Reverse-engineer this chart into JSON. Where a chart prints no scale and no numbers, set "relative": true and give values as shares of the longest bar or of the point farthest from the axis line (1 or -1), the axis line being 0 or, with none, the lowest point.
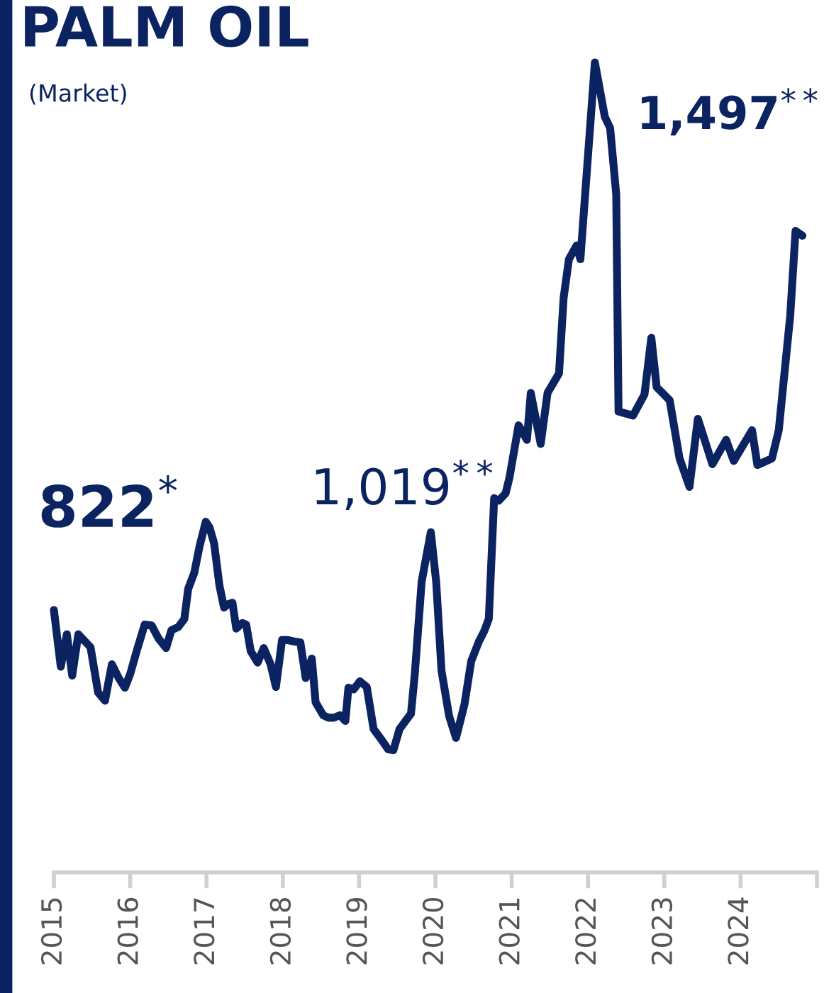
{
  "chart_data": {
    "type": "line",
    "title": "PALM OIL",
    "subtitle": "(Market)",
    "relative": true,
    "color": "#0b2461",
    "grid": false,
    "legend": false,
    "marker": "none",
    "line_style": "solid",
    "tick_labels": "x",
    "xlim": [
      2015,
      2025
    ],
    "xticks": [
      2015,
      2016,
      2017,
      2018,
      2019,
      2020,
      2021,
      2022,
      2023,
      2024,
      {
        "value": 2025,
        "label": null
      }
    ],
    "x": [
      2015.0,
      2015.09,
      2015.17,
      2015.24,
      2015.32,
      2015.41,
      2015.48,
      2015.58,
      2015.67,
      2015.76,
      2015.85,
      2015.93,
      2016.0,
      2016.09,
      2016.19,
      2016.28,
      2016.37,
      2016.47,
      2016.54,
      2016.63,
      2016.71,
      2016.76,
      2016.84,
      2016.91,
      2016.99,
      2017.04,
      2017.1,
      2017.17,
      2017.23,
      2017.28,
      2017.34,
      2017.39,
      2017.47,
      2017.52,
      2017.58,
      2017.67,
      2017.75,
      2017.84,
      2017.91,
      2017.99,
      2018.06,
      2018.15,
      2018.23,
      2018.3,
      2018.38,
      2018.43,
      2018.53,
      2018.6,
      2018.67,
      2018.75,
      2018.82,
      2018.86,
      2018.93,
      2019.01,
      2019.1,
      2019.19,
      2019.3,
      2019.38,
      2019.45,
      2019.53,
      2019.68,
      2019.73,
      2019.82,
      2019.94,
      2020.01,
      2020.08,
      2020.18,
      2020.27,
      2020.38,
      2020.47,
      2020.57,
      2020.64,
      2020.7,
      2020.77,
      2020.83,
      2020.92,
      2020.97,
      2021.09,
      2021.2,
      2021.25,
      2021.38,
      2021.47,
      2021.62,
      2021.68,
      2021.75,
      2021.85,
      2021.9,
      2022.09,
      2022.22,
      2022.29,
      2022.37,
      2022.4,
      2022.59,
      2022.74,
      2022.83,
      2022.9,
      2023.07,
      2023.2,
      2023.33,
      2023.44,
      2023.63,
      2023.81,
      2023.91,
      2024.15,
      2024.22,
      2024.41,
      2024.5,
      2024.65,
      2024.72,
      2024.81
    ],
    "values": [
      0.324,
      0.254,
      0.294,
      0.243,
      0.294,
      0.285,
      0.278,
      0.222,
      0.212,
      0.257,
      0.24,
      0.228,
      0.245,
      0.275,
      0.306,
      0.305,
      0.289,
      0.277,
      0.299,
      0.303,
      0.313,
      0.35,
      0.37,
      0.403,
      0.433,
      0.426,
      0.406,
      0.354,
      0.327,
      0.331,
      0.333,
      0.301,
      0.308,
      0.306,
      0.273,
      0.259,
      0.277,
      0.257,
      0.229,
      0.287,
      0.287,
      0.285,
      0.284,
      0.24,
      0.264,
      0.21,
      0.194,
      0.191,
      0.191,
      0.194,
      0.187,
      0.228,
      0.226,
      0.236,
      0.229,
      0.177,
      0.163,
      0.152,
      0.151,
      0.177,
      0.196,
      0.245,
      0.359,
      0.42,
      0.359,
      0.249,
      0.193,
      0.166,
      0.207,
      0.261,
      0.285,
      0.298,
      0.313,
      0.462,
      0.459,
      0.468,
      0.487,
      0.552,
      0.534,
      0.592,
      0.529,
      0.592,
      0.616,
      0.709,
      0.757,
      0.774,
      0.757,
      1.0,
      0.933,
      0.919,
      0.837,
      0.569,
      0.564,
      0.59,
      0.66,
      0.599,
      0.583,
      0.511,
      0.476,
      0.56,
      0.504,
      0.534,
      0.508,
      0.546,
      0.503,
      0.511,
      0.546,
      0.687,
      0.792,
      0.786
    ],
    "annotations": [
      {
        "text": "822$^{*}$",
        "x": 2015.0,
        "y": 0.324
      },
      {
        "text": "1,019$^{**}$",
        "x": 2019.94,
        "y": 0.42
      },
      {
        "text": "1,497$^{**}$",
        "x": 2024.81,
        "y": 0.786
      }
    ]
  }
}
